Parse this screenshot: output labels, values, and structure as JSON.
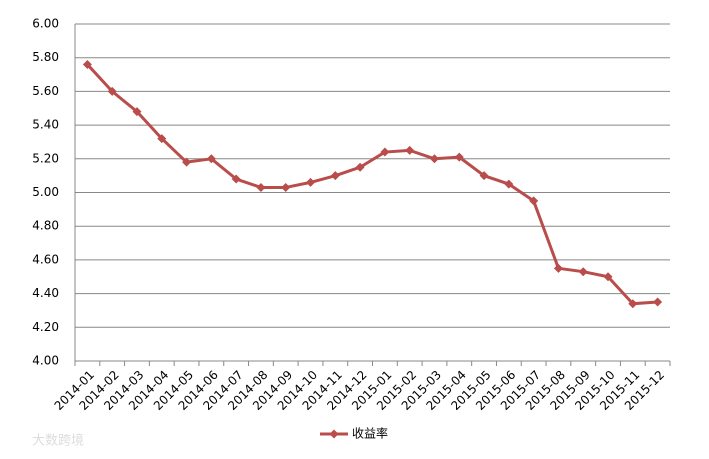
{
  "chart_data": {
    "type": "line",
    "categories": [
      "2014-01",
      "2014-02",
      "2014-03",
      "2014-04",
      "2014-05",
      "2014-06",
      "2014-07",
      "2014-08",
      "2014-09",
      "2014-10",
      "2014-11",
      "2014-12",
      "2015-01",
      "2015-02",
      "2015-03",
      "2015-04",
      "2015-05",
      "2015-06",
      "2015-07",
      "2015-08",
      "2015-09",
      "2015-10",
      "2015-11",
      "2015-12"
    ],
    "series": [
      {
        "name": "收益率",
        "color": "#b94d4b",
        "values": [
          5.76,
          5.6,
          5.48,
          5.32,
          5.18,
          5.2,
          5.08,
          5.03,
          5.03,
          5.06,
          5.1,
          5.15,
          5.24,
          5.25,
          5.2,
          5.21,
          5.1,
          5.05,
          4.95,
          4.55,
          4.53,
          4.5,
          4.34,
          4.35
        ]
      }
    ],
    "ylim": [
      4,
      6
    ],
    "yticks": [
      {
        "value": 4,
        "label": "4.00"
      },
      {
        "value": 4.2,
        "label": "4.20"
      },
      {
        "value": 4.4,
        "label": "4.40"
      },
      {
        "value": 4.6,
        "label": "4.60"
      },
      {
        "value": 4.8,
        "label": "4.80"
      },
      {
        "value": 5,
        "label": "5.00"
      },
      {
        "value": 5.2,
        "label": "5.20"
      },
      {
        "value": 5.4,
        "label": "5.40"
      },
      {
        "value": 5.6,
        "label": "5.60"
      },
      {
        "value": 5.8,
        "label": "5.80"
      },
      {
        "value": 6,
        "label": "6.00"
      }
    ],
    "grid": true,
    "legend": "bottom",
    "watermark": "大数跨境"
  }
}
